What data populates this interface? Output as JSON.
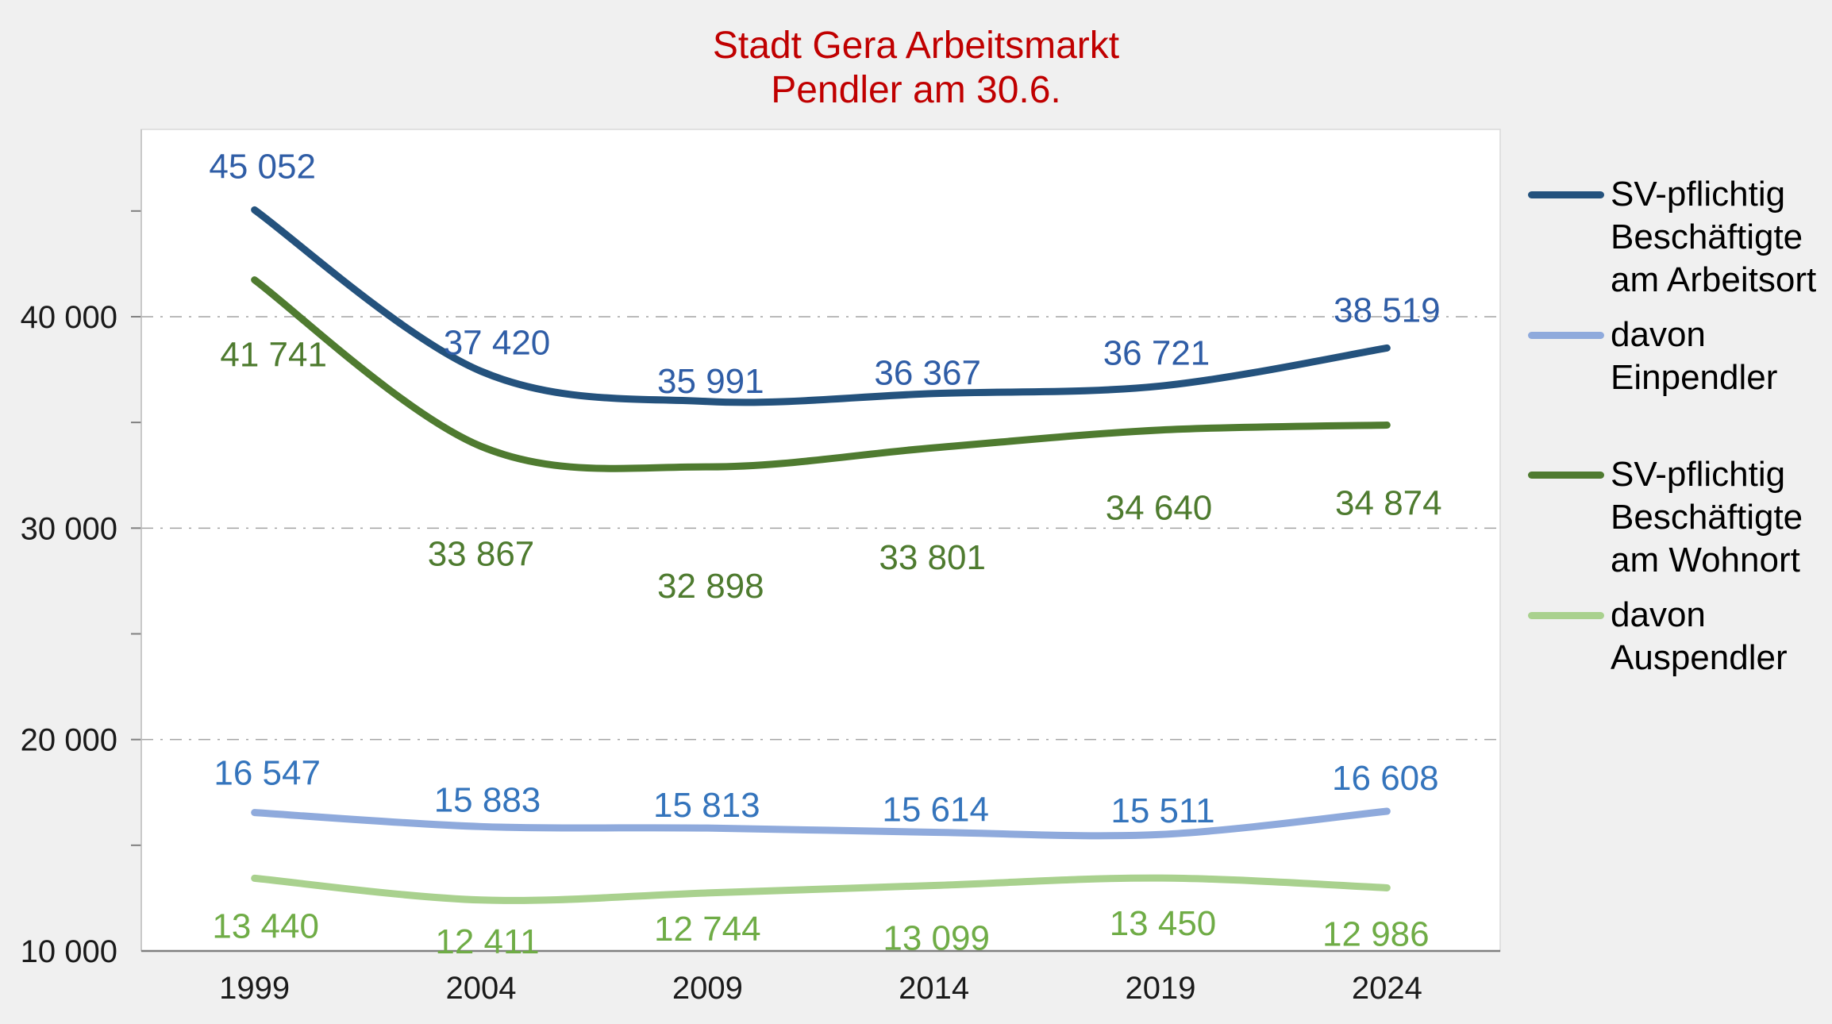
{
  "chart_data": {
    "type": "line",
    "title": "Stadt Gera Arbeitsmarkt Pendler am 30.6.",
    "title_lines": [
      "Stadt Gera Arbeitsmarkt",
      "Pendler am 30.6."
    ],
    "title_color": "#C00000",
    "categories": [
      "1999",
      "2004",
      "2009",
      "2014",
      "2019",
      "2024"
    ],
    "series": [
      {
        "name": "SV-pflichtig Beschäftigte am Arbeitsort",
        "values": [
          45052,
          37420,
          35991,
          36367,
          36721,
          38519
        ],
        "line_color": "#24527D",
        "label_color": "#2F5DA6"
      },
      {
        "name": "davon Einpendler",
        "values": [
          16547,
          15883,
          15813,
          15614,
          15511,
          16608
        ],
        "line_color": "#8FAADC",
        "label_color": "#3474BC"
      },
      {
        "name": "SV-pflichtig Beschäftigte am Wohnort",
        "values": [
          41741,
          33867,
          32898,
          33801,
          34640,
          34874
        ],
        "line_color": "#4F7B30",
        "label_color": "#4E7B2F"
      },
      {
        "name": "davon Auspendler",
        "values": [
          13440,
          12411,
          12744,
          13099,
          13450,
          12986
        ],
        "line_color": "#A9D18E",
        "label_color": "#6FAC46"
      }
    ],
    "y_axis": {
      "min": 10000,
      "max": 48860,
      "major_tick_values": [
        10000,
        20000,
        30000,
        40000
      ],
      "major_tick_labels": [
        "10 000",
        "20 000",
        "30 000",
        "40 000"
      ],
      "minor_tick_step": 5000,
      "gridlines": "dash-dot"
    },
    "x_axis": {
      "labels": [
        "1999",
        "2004",
        "2009",
        "2014",
        "2019",
        "2024"
      ]
    },
    "legend_position": "right",
    "line_style": "smoothed, no markers",
    "number_format": "space thousands separator"
  },
  "colors": {
    "background": "#F0F0F0",
    "plot_background": "#FFFFFF",
    "plot_border": "#D9D9D9",
    "gridline": "#A3A3A3",
    "x_axis_line": "#7F7F7F",
    "y_axis_line": "#BFBFBF",
    "axis_text": "#1A1A1A",
    "legend_text": "#000000",
    "title": "#C00000"
  }
}
